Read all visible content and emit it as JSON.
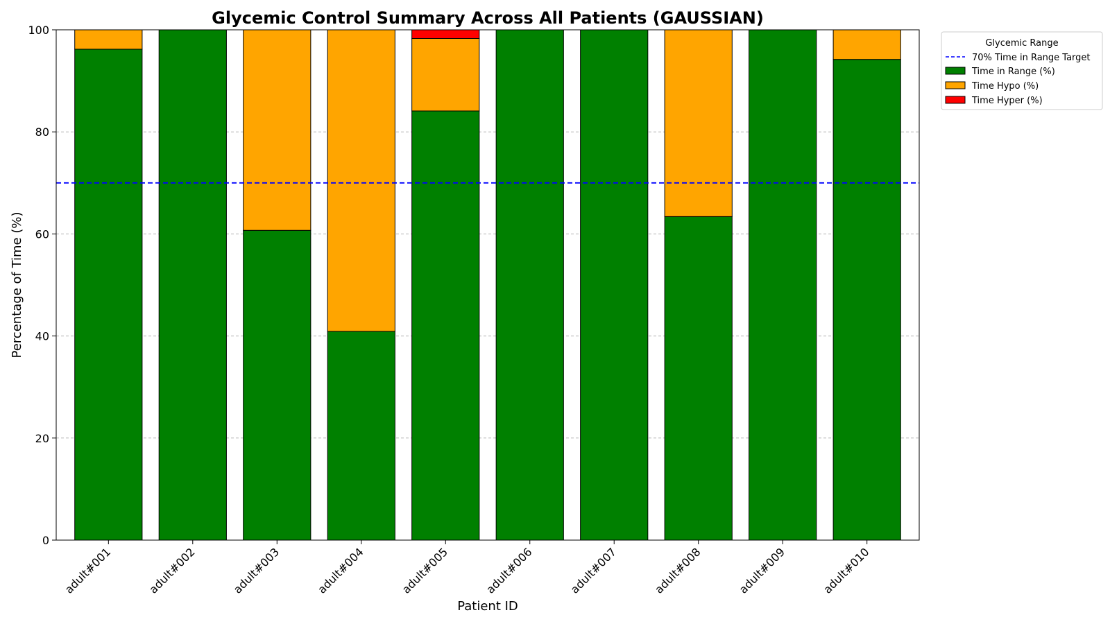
{
  "chart_data": {
    "type": "bar",
    "stacked": true,
    "title": "Glycemic Control Summary Across All Patients (GAUSSIAN)",
    "xlabel": "Patient ID",
    "ylabel": "Percentage of Time (%)",
    "ylim": [
      0,
      100
    ],
    "yticks": [
      0,
      20,
      40,
      60,
      80,
      100
    ],
    "grid": true,
    "categories": [
      "adult#001",
      "adult#002",
      "adult#003",
      "adult#004",
      "adult#005",
      "adult#006",
      "adult#007",
      "adult#008",
      "adult#009",
      "adult#010"
    ],
    "series": [
      {
        "name": "Time in Range (%)",
        "color": "#008000",
        "values": [
          96.2,
          100,
          60.7,
          40.9,
          84.1,
          100,
          100,
          63.4,
          100,
          94.2
        ]
      },
      {
        "name": "Time Hypo (%)",
        "color": "#FFA500",
        "values": [
          3.8,
          0,
          39.3,
          59.1,
          14.2,
          0,
          0,
          36.6,
          0,
          5.8
        ]
      },
      {
        "name": "Time Hyper (%)",
        "color": "#FF0000",
        "values": [
          0,
          0,
          0,
          0,
          1.7,
          0,
          0,
          0,
          0,
          0
        ]
      }
    ],
    "reference_line": {
      "name": "70% Time in Range Target",
      "value": 70,
      "color": "#0000FF"
    },
    "legend": {
      "title": "Glycemic Range",
      "placement": "outside top-right"
    }
  }
}
